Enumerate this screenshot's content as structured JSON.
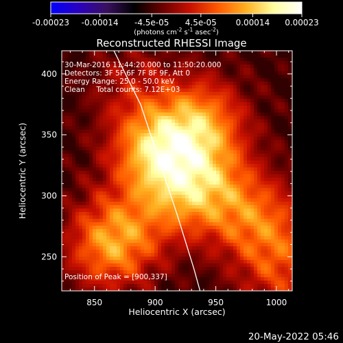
{
  "chart_data": {
    "type": "heatmap",
    "title": "Reconstructed RHESSI Image",
    "xlabel": "Heliocentric X (arcsec)",
    "ylabel": "Heliocentric Y (arcsec)",
    "xlim": [
      823,
      1013
    ],
    "ylim": [
      222,
      419
    ],
    "x_ticks": [
      850,
      900,
      950,
      1000
    ],
    "y_ticks": [
      250,
      300,
      350,
      400
    ],
    "x_tick_labels": [
      "850",
      "900",
      "950",
      "1000"
    ],
    "y_tick_labels": [
      "250",
      "300",
      "350",
      "400"
    ],
    "colorbar": {
      "range": [
        -0.00023,
        0.00023
      ],
      "ticks": [
        -0.00023,
        -0.00014,
        -4.5e-05,
        4.5e-05,
        0.00014,
        0.00023
      ],
      "tick_labels": [
        "-0.00023",
        "-0.00014",
        "-4.5e-05",
        "4.5e-05",
        "0.00014",
        "0.00023"
      ],
      "units_label": "(photons cm-2 s-1 asec-2)",
      "colormap": [
        "#0000ff",
        "#2a00c0",
        "#3a1060",
        "#000000",
        "#6a0000",
        "#c81000",
        "#ff5a00",
        "#ffb020",
        "#ffffa0",
        "#ffffff"
      ]
    },
    "peak": [
      900,
      337
    ],
    "sources": [
      {
        "x": 900,
        "y": 337,
        "amp": 1.0
      },
      {
        "x": 938,
        "y": 360,
        "amp": 0.85
      },
      {
        "x": 920,
        "y": 300,
        "amp": 0.55
      },
      {
        "x": 945,
        "y": 312,
        "amp": 0.5
      },
      {
        "x": 870,
        "y": 268,
        "amp": 0.6
      },
      {
        "x": 860,
        "y": 255,
        "amp": 0.45
      },
      {
        "x": 975,
        "y": 285,
        "amp": 0.5
      },
      {
        "x": 1000,
        "y": 270,
        "amp": 0.35
      },
      {
        "x": 880,
        "y": 390,
        "amp": 0.3
      },
      {
        "x": 1005,
        "y": 235,
        "amp": 0.45
      }
    ],
    "limb_curve": [
      [
        866,
        419
      ],
      [
        888,
        375
      ],
      [
        903,
        330
      ],
      [
        918,
        285
      ],
      [
        932,
        240
      ],
      [
        937,
        222
      ]
    ],
    "limb_color": "#ffffff"
  },
  "annotations": {
    "line1": "30-Mar-2016 11:44:20.000 to 11:50:20.000",
    "line2": "Detectors: 3F 5F 6F 7F 8F 9F, Att 0",
    "line3": "Energy Range: 25.0 - 50.0 keV",
    "line4": "Clean     Total counts: 7.12E+03",
    "peak_text": "Position of Peak = [900,337]"
  },
  "footer": {
    "timestamp": "20-May-2022 05:46"
  }
}
